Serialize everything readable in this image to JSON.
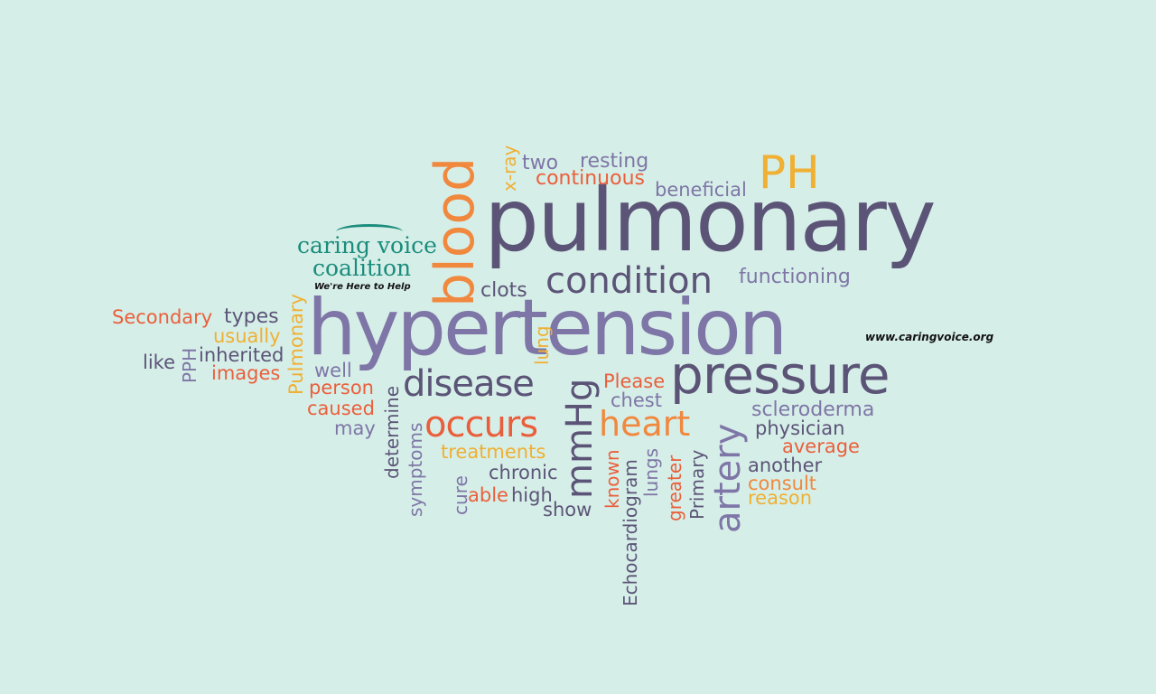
{
  "colors": {
    "background": "#d6eee8",
    "dark_purple": "#5b5477",
    "lavender": "#7e76a6",
    "orange": "#f0883e",
    "red_orange": "#ea5f3b",
    "yellow": "#efb033",
    "teal": "#1a8d7c",
    "black": "#111111"
  },
  "logo": {
    "line1": "caring voice",
    "line2": "coalition",
    "tagline": "We're Here to Help"
  },
  "website": "www.caringvoice.org",
  "words": {
    "pulmonary": "pulmonary",
    "hypertension": "hypertension",
    "pressure": "pressure",
    "blood": "blood",
    "condition": "condition",
    "disease": "disease",
    "occurs": "occurs",
    "heart": "heart",
    "artery": "artery",
    "mmhg": "mmHg",
    "ph": "PH",
    "two": "two",
    "resting": "resting",
    "continuous": "continuous",
    "beneficial": "beneficial",
    "xray": "x-ray",
    "functioning": "functioning",
    "clots": "clots",
    "secondary": "Secondary",
    "types": "types",
    "usually": "usually",
    "like": "like",
    "pph": "PPH",
    "inherited": "inherited",
    "images": "images",
    "pulmonary_small": "Pulmonary",
    "well": "well",
    "person": "person",
    "caused": "caused",
    "may": "may",
    "lung": "lung",
    "determine": "determine",
    "symptoms": "symptoms",
    "please": "Please",
    "chest": "chest",
    "treatments": "treatments",
    "cure": "cure",
    "chronic": "chronic",
    "able": "able",
    "high": "high",
    "show": "show",
    "known": "known",
    "echocardiogram": "Echocardiogram",
    "lungs": "lungs",
    "greater": "greater",
    "primary": "Primary",
    "scleroderma": "scleroderma",
    "physician": "physician",
    "average": "average",
    "another": "another",
    "consult": "consult",
    "reason": "reason"
  }
}
